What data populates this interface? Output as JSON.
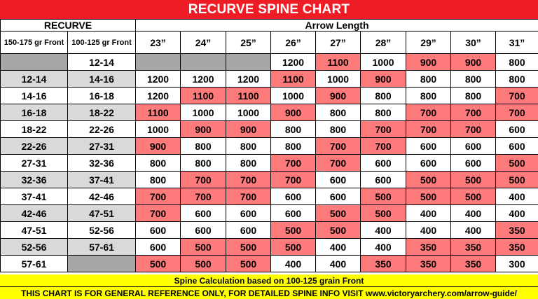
{
  "title": "RECURVE SPINE CHART",
  "header": {
    "recurve": "RECURVE",
    "arrow_length": "Arrow Length",
    "col_a": "150-175 gr Front",
    "col_b": "100-125 gr Front",
    "lengths": [
      "23”",
      "24”",
      "25”",
      "26”",
      "27”",
      "28”",
      "29”",
      "30”",
      "31”"
    ]
  },
  "chart_data": {
    "type": "table",
    "rows": [
      {
        "a": "",
        "b": "12-14",
        "values": [
          "",
          "",
          "",
          "1200",
          "1100",
          "1000",
          "900",
          "900",
          "800"
        ]
      },
      {
        "a": "12-14",
        "b": "14-16",
        "values": [
          "1200",
          "1200",
          "1200",
          "1100",
          "1000",
          "900",
          "800",
          "800",
          "800"
        ]
      },
      {
        "a": "14-16",
        "b": "16-18",
        "values": [
          "1200",
          "1100",
          "1100",
          "1000",
          "900",
          "800",
          "800",
          "800",
          "700"
        ]
      },
      {
        "a": "16-18",
        "b": "18-22",
        "values": [
          "1100",
          "1000",
          "1000",
          "900",
          "800",
          "800",
          "700",
          "700",
          "700"
        ]
      },
      {
        "a": "18-22",
        "b": "22-26",
        "values": [
          "1000",
          "900",
          "900",
          "800",
          "800",
          "700",
          "700",
          "700",
          "600"
        ]
      },
      {
        "a": "22-26",
        "b": "27-31",
        "values": [
          "900",
          "800",
          "800",
          "800",
          "700",
          "700",
          "600",
          "600",
          "600"
        ]
      },
      {
        "a": "27-31",
        "b": "32-36",
        "values": [
          "800",
          "800",
          "800",
          "700",
          "700",
          "600",
          "600",
          "600",
          "500"
        ]
      },
      {
        "a": "32-36",
        "b": "37-41",
        "values": [
          "800",
          "700",
          "700",
          "700",
          "600",
          "600",
          "500",
          "500",
          "500"
        ]
      },
      {
        "a": "37-41",
        "b": "42-46",
        "values": [
          "700",
          "700",
          "700",
          "600",
          "600",
          "500",
          "500",
          "500",
          "400"
        ]
      },
      {
        "a": "42-46",
        "b": "47-51",
        "values": [
          "700",
          "600",
          "600",
          "600",
          "500",
          "500",
          "400",
          "400",
          "400"
        ]
      },
      {
        "a": "47-51",
        "b": "52-56",
        "values": [
          "600",
          "600",
          "600",
          "500",
          "500",
          "400",
          "400",
          "400",
          "350"
        ]
      },
      {
        "a": "52-56",
        "b": "57-61",
        "values": [
          "600",
          "500",
          "500",
          "500",
          "400",
          "400",
          "350",
          "350",
          "350"
        ]
      },
      {
        "a": "57-61",
        "b": "",
        "values": [
          "500",
          "500",
          "500",
          "400",
          "400",
          "350",
          "350",
          "350",
          "300"
        ]
      }
    ],
    "highlight_values": [
      "1100",
      "900",
      "700",
      "500",
      "350"
    ]
  },
  "colors": {
    "title_bg": "#ee1c24",
    "highlight": "#ff7b7b",
    "blank_cell": "#a6a6a6",
    "alt_row": "#d9d9d9",
    "footer_bg": "#ffff00"
  },
  "footer": {
    "line1": "Spine Calculation based on 100-125 grain Front",
    "line2": "THIS CHART IS FOR GENERAL REFERENCE ONLY, FOR DETAILED SPINE INFO VISIT www.victoryarchery.com/arrow-guide/"
  }
}
